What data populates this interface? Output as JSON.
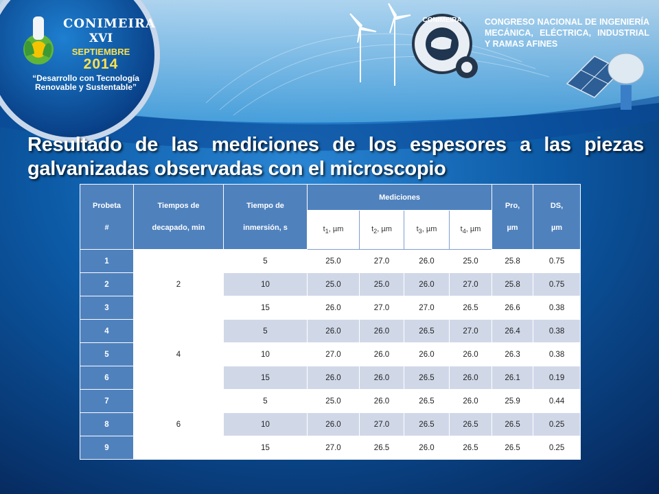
{
  "logo": {
    "name": "CONIMEIRA",
    "edition": "XVI",
    "month": "SEPTIEMBRE",
    "year": "2014",
    "slogan": "“Desarrollo con Tecnología Renovable y Sustentable”",
    "emblem_text": "CONIMEIRA"
  },
  "congress": {
    "line1": "CONGRESO NACIONAL DE INGENIERÍA",
    "line2": "MECÁNICA, ELÉCTRICA, INDUSTRIAL",
    "line3": "Y RAMAS AFINES"
  },
  "title": {
    "line1": "Resultado de las mediciones de los espesores a las piezas",
    "line2": "galvanizadas observadas con el microscopio"
  },
  "table": {
    "headers": {
      "probeta": "Probeta",
      "probeta_hash": "#",
      "tiempos_decapado_1": "Tiempos de",
      "tiempos_decapado_2": "decapado, min",
      "tiempo_inmersion_1": "Tiempo de",
      "tiempo_inmersion_2": "inmersión, s",
      "mediciones": "Mediciones",
      "t1": "t",
      "t1_sub": "1",
      "t2": "t",
      "t2_sub": "2",
      "t3": "t",
      "t3_sub": "3",
      "t4": "t",
      "t4_sub": "4",
      "unit": ", µm",
      "pro_1": "Pro,",
      "pro_2": "µm",
      "ds_1": "DS,",
      "ds_2": "µm"
    },
    "groups": [
      {
        "decapado": "2",
        "rows": [
          {
            "probeta": "1",
            "inmersion": "5",
            "t1": "25.0",
            "t2": "27.0",
            "t3": "26.0",
            "t4": "25.0",
            "pro": "25.8",
            "ds": "0.75"
          },
          {
            "probeta": "2",
            "inmersion": "10",
            "t1": "25.0",
            "t2": "25.0",
            "t3": "26.0",
            "t4": "27.0",
            "pro": "25.8",
            "ds": "0.75"
          },
          {
            "probeta": "3",
            "inmersion": "15",
            "t1": "26.0",
            "t2": "27.0",
            "t3": "27.0",
            "t4": "26.5",
            "pro": "26.6",
            "ds": "0.38"
          }
        ]
      },
      {
        "decapado": "4",
        "rows": [
          {
            "probeta": "4",
            "inmersion": "5",
            "t1": "26.0",
            "t2": "26.0",
            "t3": "26.5",
            "t4": "27.0",
            "pro": "26.4",
            "ds": "0.38"
          },
          {
            "probeta": "5",
            "inmersion": "10",
            "t1": "27.0",
            "t2": "26.0",
            "t3": "26.0",
            "t4": "26.0",
            "pro": "26.3",
            "ds": "0.38"
          },
          {
            "probeta": "6",
            "inmersion": "15",
            "t1": "26.0",
            "t2": "26.0",
            "t3": "26.5",
            "t4": "26.0",
            "pro": "26.1",
            "ds": "0.19"
          }
        ]
      },
      {
        "decapado": "6",
        "rows": [
          {
            "probeta": "7",
            "inmersion": "5",
            "t1": "25.0",
            "t2": "26.0",
            "t3": "26.5",
            "t4": "26.0",
            "pro": "25.9",
            "ds": "0.44"
          },
          {
            "probeta": "8",
            "inmersion": "10",
            "t1": "26.0",
            "t2": "27.0",
            "t3": "26.5",
            "t4": "26.5",
            "pro": "26.5",
            "ds": "0.25"
          },
          {
            "probeta": "9",
            "inmersion": "15",
            "t1": "27.0",
            "t2": "26.5",
            "t3": "26.0",
            "t4": "26.5",
            "pro": "26.5",
            "ds": "0.25"
          }
        ]
      }
    ]
  },
  "colors": {
    "background_top": "#0b5aa8",
    "background_bottom": "#0a2a5e",
    "header_blue": "#4f81bd",
    "row_alt": "#d0d8e8",
    "accent_yellow": "#ffe14d"
  }
}
